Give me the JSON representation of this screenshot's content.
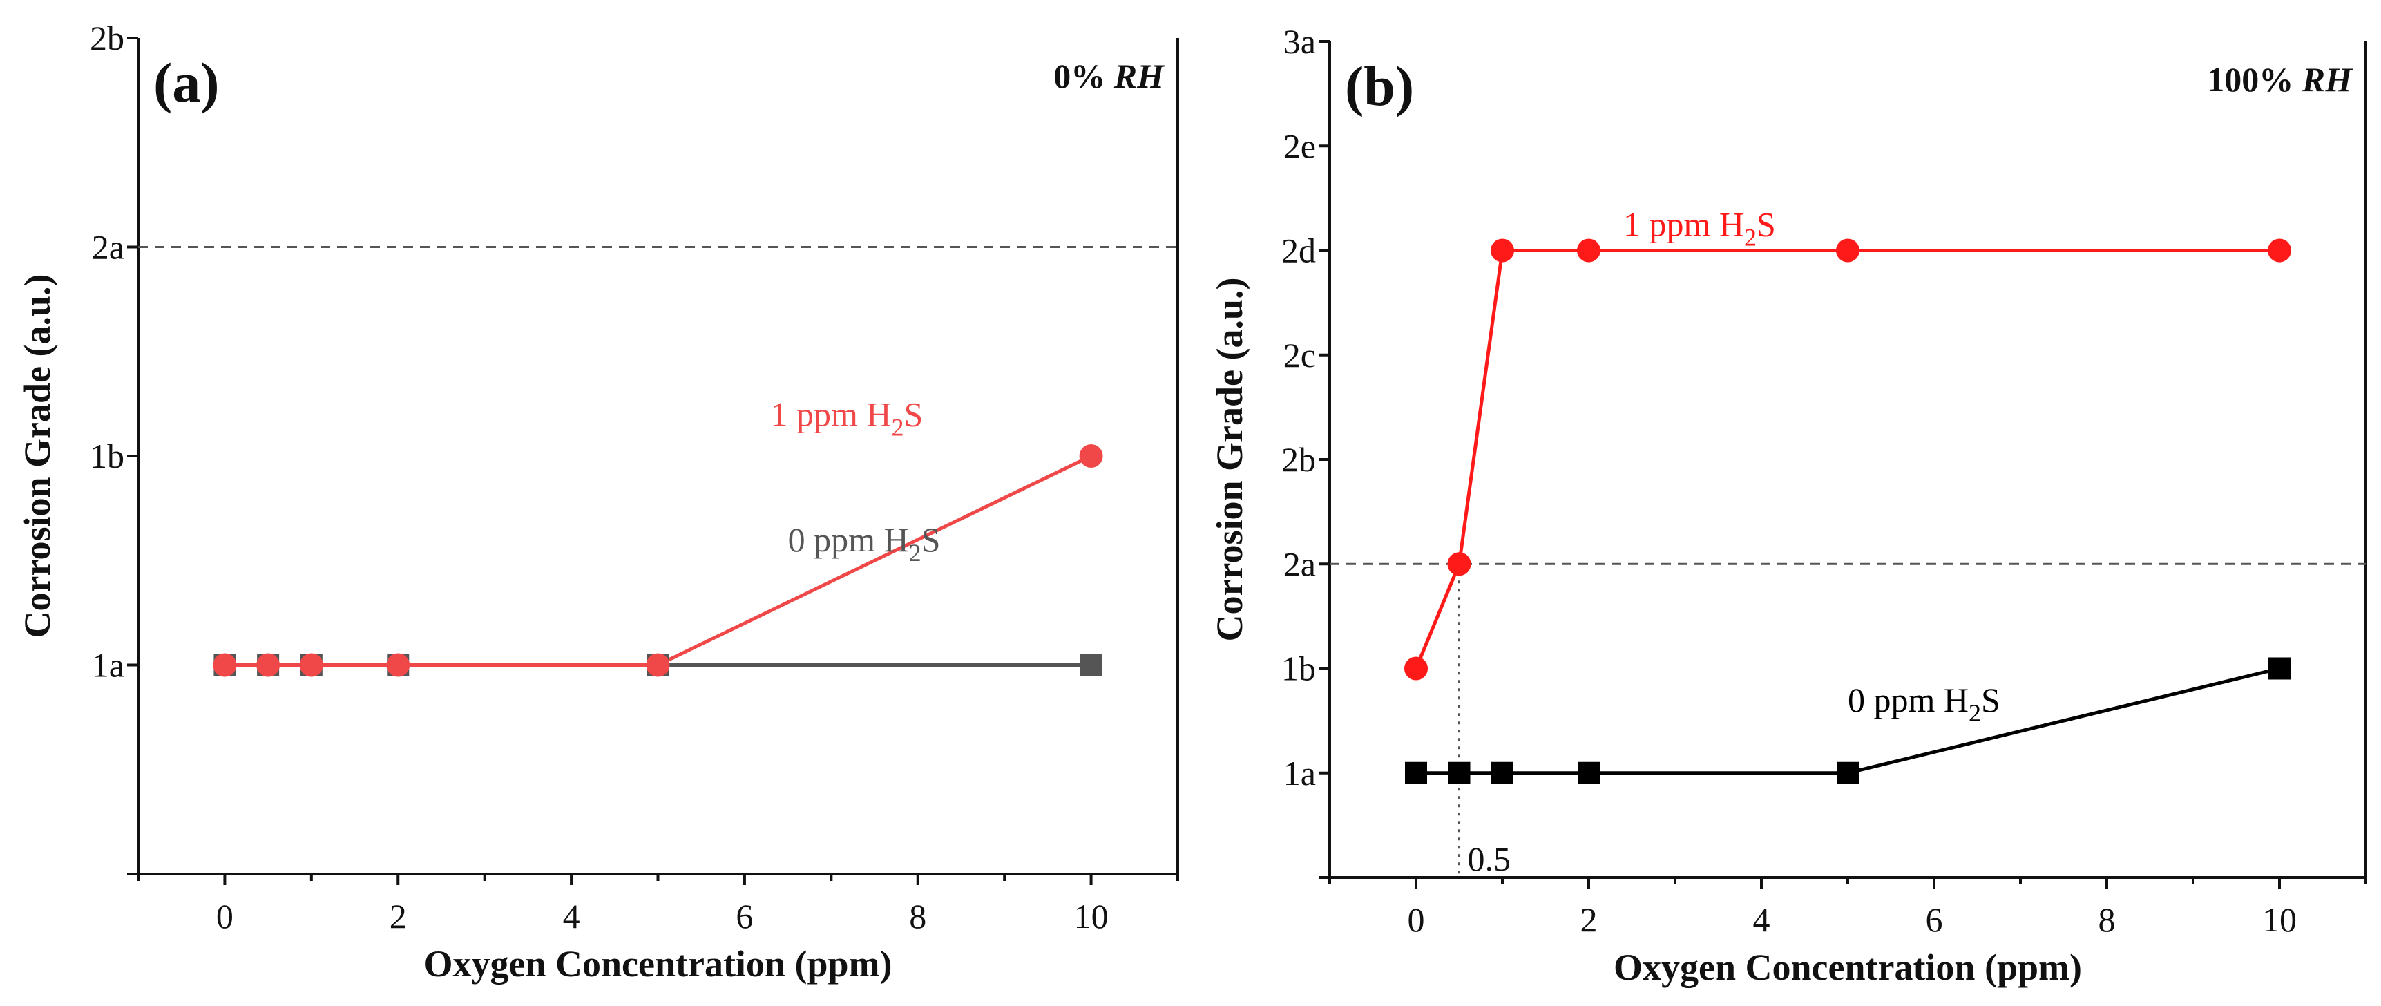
{
  "chart_data": [
    {
      "type": "line",
      "panel_label": "(a)",
      "condition_prefix": "0% ",
      "condition_italic": "RH",
      "xlabel": "Oxygen Concentration (ppm)",
      "ylabel": "Corrosion Grade (a.u.)",
      "xlim": [
        -1,
        11
      ],
      "x_ticks": [
        0,
        2,
        4,
        6,
        8,
        10
      ],
      "x_tick_labels": [
        "0",
        "2",
        "4",
        "6",
        "8",
        "10"
      ],
      "y_categories": [
        "",
        "1a",
        "1b",
        "2a",
        "2b"
      ],
      "ylim": [
        0,
        4
      ],
      "reference_line": {
        "y": 3
      },
      "series": [
        {
          "name": "0 ppm H2S",
          "label_parts": [
            "0 ppm H",
            "2",
            "S"
          ],
          "color": "#555555",
          "marker": "square",
          "x": [
            0,
            0.5,
            1,
            2,
            5,
            10
          ],
          "y": [
            "1a",
            "1a",
            "1a",
            "1a",
            "1a",
            "1a"
          ],
          "label_at": [
            6.5,
            1.6
          ]
        },
        {
          "name": "1 ppm H2S",
          "label_parts": [
            "1 ppm H",
            "2",
            "S"
          ],
          "color": "#f04848",
          "marker": "circle",
          "x": [
            0,
            0.5,
            1,
            2,
            5,
            10
          ],
          "y": [
            "1a",
            "1a",
            "1a",
            "1a",
            "1a",
            "1b"
          ],
          "label_at": [
            6.3,
            2.2
          ]
        }
      ]
    },
    {
      "type": "line",
      "panel_label": "(b)",
      "condition_prefix": "100% ",
      "condition_italic": "RH",
      "xlabel": "Oxygen Concentration (ppm)",
      "ylabel": "Corrosion Grade (a.u.)",
      "xlim": [
        -1,
        11
      ],
      "x_ticks": [
        0,
        2,
        4,
        6,
        8,
        10
      ],
      "x_tick_labels": [
        "0",
        "2",
        "4",
        "6",
        "8",
        "10"
      ],
      "y_categories": [
        "",
        "1a",
        "1b",
        "2a",
        "2b",
        "2c",
        "2d",
        "2e",
        "3a"
      ],
      "ylim": [
        0,
        8
      ],
      "reference_line": {
        "y": 3
      },
      "guide_line": {
        "x": 0.5,
        "label": "0.5"
      },
      "series": [
        {
          "name": "0 ppm H2S",
          "label_parts": [
            "0 ppm H",
            "2",
            "S"
          ],
          "color": "#000000",
          "marker": "square",
          "x": [
            0,
            0.5,
            1,
            2,
            5,
            10
          ],
          "y": [
            "1a",
            "1a",
            "1a",
            "1a",
            "1a",
            "1b"
          ],
          "label_at": [
            5.0,
            1.7
          ]
        },
        {
          "name": "1 ppm H2S",
          "label_parts": [
            "1 ppm H",
            "2",
            "S"
          ],
          "color": "#ff1a1a",
          "marker": "circle",
          "x": [
            0,
            0.5,
            1,
            2,
            5,
            10
          ],
          "y": [
            "1b",
            "2a",
            "2d",
            "2d",
            "2d",
            "2d"
          ],
          "label_at": [
            2.4,
            6.25
          ]
        }
      ]
    }
  ]
}
